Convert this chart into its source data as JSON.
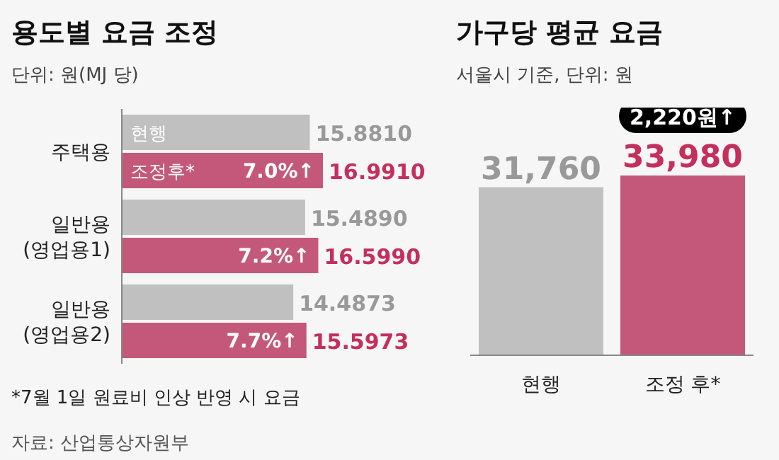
{
  "chart_data": [
    {
      "type": "bar",
      "orientation": "horizontal",
      "title": "용도별 요금 조정",
      "subtitle": "단위: 원(MJ 당)",
      "categories": [
        "주택용",
        "일반용\n(영업용1)",
        "일반용\n(영업용2)"
      ],
      "series": [
        {
          "name": "현행",
          "color": "#c0c0c0",
          "values": [
            15.881,
            15.489,
            14.4873
          ],
          "value_labels": [
            "15.8810",
            "15.4890",
            "14.4873"
          ]
        },
        {
          "name": "조정후*",
          "color": "#c4587a",
          "values": [
            16.991,
            16.599,
            15.5973
          ],
          "value_labels": [
            "16.9910",
            "16.5990",
            "15.5973"
          ]
        }
      ],
      "annotations": [
        {
          "text": "7.0%↑",
          "x": 16.991,
          "y": "주택용"
        },
        {
          "text": "7.2%↑",
          "x": 16.599,
          "y": "일반용\n(영업용1)"
        },
        {
          "text": "7.7%↑",
          "x": 15.5973,
          "y": "일반용\n(영업용2)"
        },
        "*7월 1일 원료비 인상 반영 시 요금",
        "자료: 산업통상자원부"
      ]
    },
    {
      "type": "bar",
      "title": "가구당 평균 요금",
      "subtitle": "서울시 기준, 단위: 원",
      "categories": [
        "현행",
        "조정 후*"
      ],
      "values": [
        31760,
        33980
      ],
      "colors": [
        "#c0c0c0",
        "#c4587a"
      ],
      "value_labels": [
        "31,760",
        "33,980"
      ],
      "annotations": [
        {
          "text": "2,220원↑",
          "x": "조정 후*",
          "y": 33980
        }
      ]
    }
  ]
}
